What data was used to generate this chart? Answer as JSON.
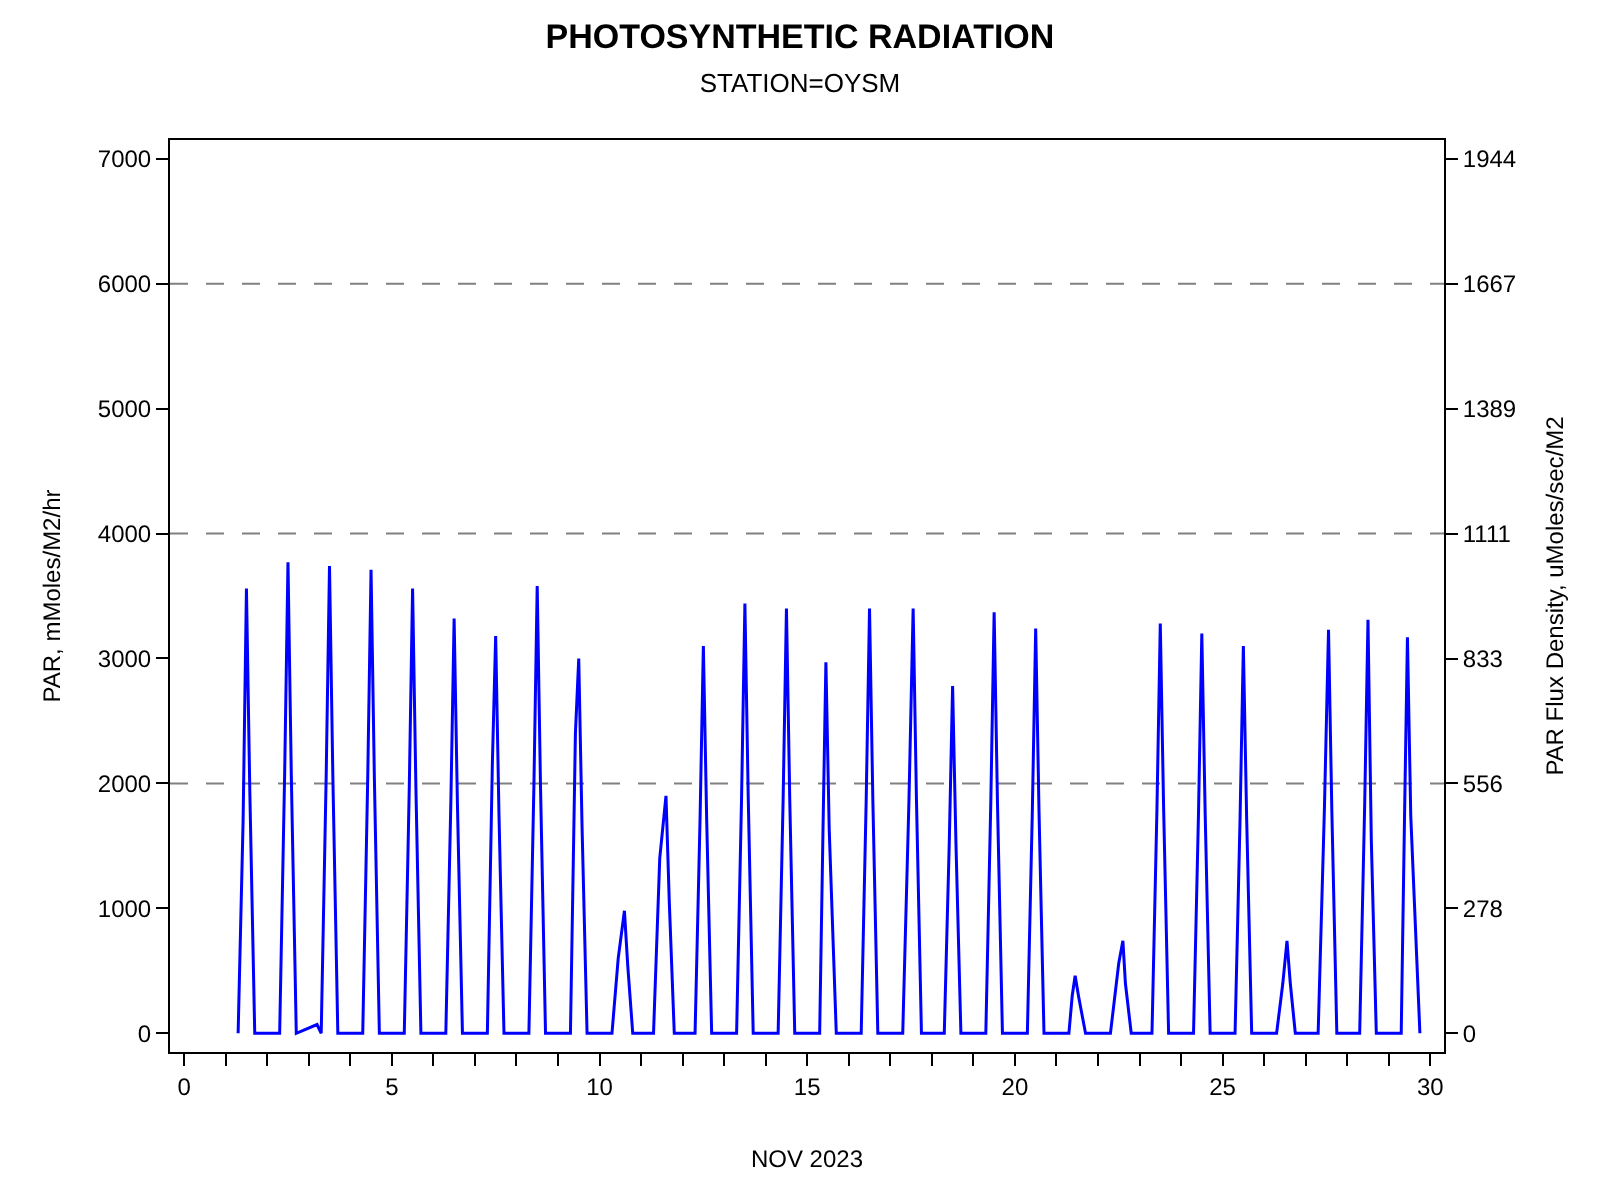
{
  "chart_data": {
    "type": "line",
    "title": "PHOTOSYNTHETIC RADIATION",
    "subtitle": "STATION=OYSM",
    "xlabel": "NOV 2023",
    "ylabel": "PAR, mMoles/M2/hr",
    "y2label": "PAR Flux Density, uMoles/sec/M2",
    "x": [
      1.3,
      1.42,
      1.5,
      1.58,
      1.7,
      2.3,
      2.42,
      2.5,
      2.58,
      2.7,
      3.2,
      3.3,
      3.42,
      3.5,
      3.58,
      3.7,
      4.3,
      4.42,
      4.5,
      4.58,
      4.7,
      5.3,
      5.42,
      5.5,
      5.58,
      5.7,
      6.3,
      6.42,
      6.5,
      6.58,
      6.7,
      7.3,
      7.42,
      7.5,
      7.58,
      7.7,
      8.3,
      8.42,
      8.5,
      8.58,
      8.7,
      9.3,
      9.42,
      9.5,
      9.58,
      9.7,
      10.3,
      10.45,
      10.6,
      10.68,
      10.8,
      11.3,
      11.45,
      11.6,
      11.68,
      11.8,
      12.3,
      12.42,
      12.5,
      12.58,
      12.7,
      13.3,
      13.42,
      13.5,
      13.58,
      13.7,
      14.3,
      14.42,
      14.5,
      14.58,
      14.7,
      15.3,
      15.38,
      15.45,
      15.53,
      15.7,
      16.3,
      16.42,
      16.5,
      16.58,
      16.7,
      17.3,
      17.45,
      17.55,
      17.63,
      17.75,
      18.3,
      18.42,
      18.5,
      18.58,
      18.7,
      19.3,
      19.42,
      19.5,
      19.58,
      19.7,
      20.3,
      20.42,
      20.5,
      20.58,
      20.7,
      21.3,
      21.38,
      21.45,
      21.53,
      21.7,
      22.3,
      22.5,
      22.6,
      22.66,
      22.8,
      23.3,
      23.42,
      23.5,
      23.58,
      23.7,
      24.3,
      24.42,
      24.5,
      24.58,
      24.7,
      25.3,
      25.42,
      25.5,
      25.58,
      25.7,
      26.3,
      26.45,
      26.55,
      26.63,
      26.75,
      27.3,
      27.45,
      27.55,
      27.63,
      27.75,
      28.3,
      28.42,
      28.5,
      28.58,
      28.7,
      29.3,
      29.38,
      29.45,
      29.53,
      29.75
    ],
    "series": [
      {
        "color": "#0000ff",
        "values": [
          0,
          1700,
          3560,
          1960,
          0,
          0,
          2070,
          3770,
          2070,
          0,
          70,
          0,
          2060,
          3740,
          2060,
          0,
          0,
          2040,
          3710,
          2040,
          0,
          0,
          1960,
          3560,
          1960,
          0,
          0,
          1830,
          3320,
          1830,
          0,
          0,
          2150,
          3180,
          1750,
          0,
          0,
          1970,
          3580,
          1970,
          0,
          0,
          2400,
          3000,
          1650,
          0,
          0,
          600,
          980,
          540,
          0,
          0,
          1400,
          1900,
          1050,
          0,
          0,
          1710,
          3100,
          1710,
          0,
          0,
          1890,
          3440,
          1890,
          0,
          0,
          1870,
          3400,
          1870,
          0,
          0,
          1630,
          2970,
          1630,
          0,
          0,
          1870,
          3400,
          1870,
          0,
          0,
          1870,
          3400,
          1870,
          0,
          0,
          1530,
          2780,
          1530,
          0,
          0,
          1850,
          3370,
          1850,
          0,
          0,
          1780,
          3240,
          1780,
          0,
          0,
          300,
          460,
          300,
          0,
          0,
          560,
          740,
          400,
          0,
          0,
          1800,
          3280,
          1800,
          0,
          0,
          1760,
          3200,
          1760,
          0,
          0,
          1710,
          3100,
          1710,
          0,
          0,
          400,
          740,
          400,
          0,
          0,
          1780,
          3230,
          1780,
          0,
          0,
          1820,
          3310,
          1550,
          0,
          0,
          1740,
          3170,
          1740,
          0
        ]
      }
    ],
    "xlim": [
      -0.34,
      30.33
    ],
    "xticks": [
      0,
      {
        "value": 1,
        "label": null
      },
      {
        "value": 2,
        "label": null
      },
      {
        "value": 3,
        "label": null
      },
      {
        "value": 4,
        "label": null
      },
      5,
      {
        "value": 6,
        "label": null
      },
      {
        "value": 7,
        "label": null
      },
      {
        "value": 8,
        "label": null
      },
      {
        "value": 9,
        "label": null
      },
      10,
      {
        "value": 11,
        "label": null
      },
      {
        "value": 12,
        "label": null
      },
      {
        "value": 13,
        "label": null
      },
      {
        "value": 14,
        "label": null
      },
      15,
      {
        "value": 16,
        "label": null
      },
      {
        "value": 17,
        "label": null
      },
      {
        "value": 18,
        "label": null
      },
      {
        "value": 19,
        "label": null
      },
      20,
      {
        "value": 21,
        "label": null
      },
      {
        "value": 22,
        "label": null
      },
      {
        "value": 23,
        "label": null
      },
      {
        "value": 24,
        "label": null
      },
      25,
      {
        "value": 26,
        "label": null
      },
      {
        "value": 27,
        "label": null
      },
      {
        "value": 28,
        "label": null
      },
      {
        "value": 29,
        "label": null
      },
      30
    ],
    "ylim": [
      -150,
      7150
    ],
    "yticks": [
      0,
      1000,
      2000,
      3000,
      4000,
      5000,
      6000,
      7000
    ],
    "y2lim": [
      -41.7,
      1986.1
    ],
    "y2ticks": [
      0,
      278,
      556,
      833,
      1111,
      1389,
      1667,
      1944
    ],
    "ref_lines": [
      {
        "axis": "y",
        "value": 2000,
        "color": "#808080",
        "line_style": "dashed"
      },
      {
        "axis": "y",
        "value": 4000,
        "color": "#808080",
        "line_style": "dashed"
      },
      {
        "axis": "y",
        "value": 6000,
        "color": "#808080",
        "line_style": "dashed"
      }
    ],
    "grid": false,
    "marker": "none",
    "line_style": "solid"
  }
}
